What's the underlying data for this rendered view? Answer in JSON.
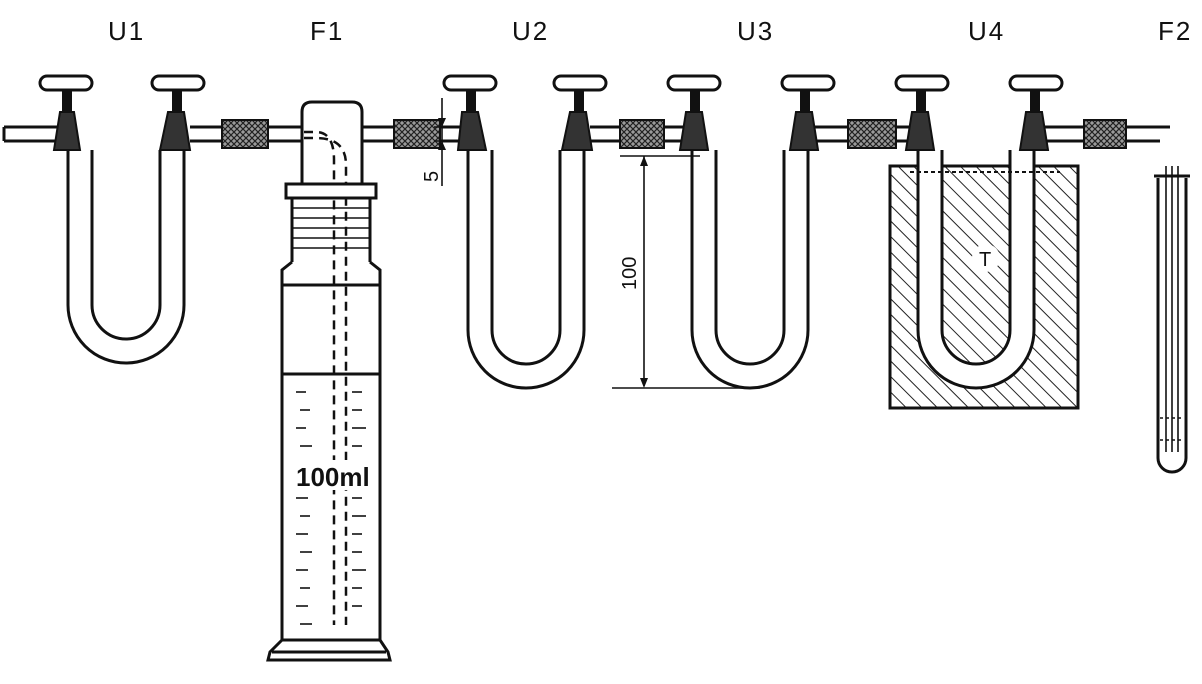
{
  "labels": {
    "u1": "U1",
    "f1": "F1",
    "u2": "U2",
    "u3": "U3",
    "u4": "U4",
    "f2": "F2"
  },
  "dimensions": {
    "gap": "5",
    "height": "100"
  },
  "flask_volume": "100ml",
  "bath_label": "T"
}
